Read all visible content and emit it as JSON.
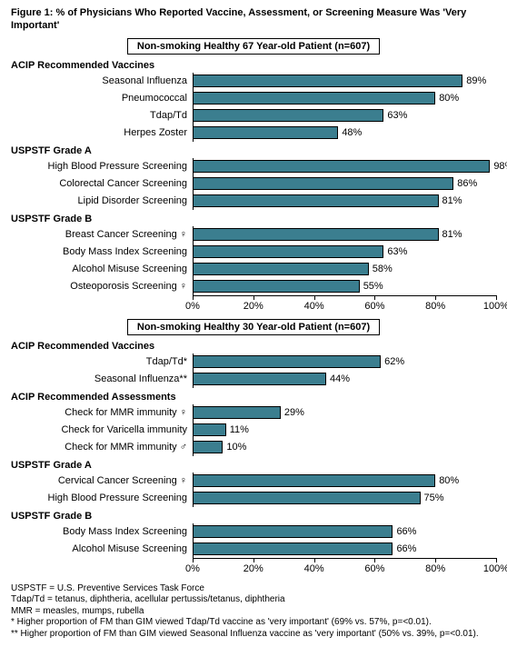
{
  "figure_title": "Figure 1: % of Physicians Who Reported Vaccine, Assessment, or Screening Measure Was 'Very Important'",
  "bar_color": "#3b7e8f",
  "bar_border": "#000000",
  "background_color": "#ffffff",
  "xlim": [
    0,
    100
  ],
  "xtick_step": 20,
  "xtick_labels": [
    "0%",
    "20%",
    "40%",
    "60%",
    "80%",
    "100%"
  ],
  "panels": [
    {
      "title": "Non-smoking Healthy 67 Year-old Patient (n=607)",
      "groups": [
        {
          "label": "ACIP Recommended Vaccines",
          "rows": [
            {
              "label": "Seasonal Influenza",
              "value": 89
            },
            {
              "label": "Pneumococcal",
              "value": 80
            },
            {
              "label": "Tdap/Td",
              "value": 63
            },
            {
              "label": "Herpes Zoster",
              "value": 48
            }
          ]
        },
        {
          "label": "USPSTF Grade A",
          "rows": [
            {
              "label": "High Blood Pressure Screening",
              "value": 98
            },
            {
              "label": "Colorectal Cancer Screening",
              "value": 86
            },
            {
              "label": "Lipid Disorder Screening",
              "value": 81
            }
          ]
        },
        {
          "label": "USPSTF Grade B",
          "rows": [
            {
              "label": "Breast Cancer Screening ♀",
              "value": 81
            },
            {
              "label": "Body Mass Index Screening",
              "value": 63
            },
            {
              "label": "Alcohol Misuse Screening",
              "value": 58
            },
            {
              "label": "Osteoporosis Screening ♀",
              "value": 55
            }
          ]
        }
      ]
    },
    {
      "title": "Non-smoking Healthy 30 Year-old Patient (n=607)",
      "groups": [
        {
          "label": "ACIP Recommended Vaccines",
          "rows": [
            {
              "label": "Tdap/Td*",
              "value": 62
            },
            {
              "label": "Seasonal Influenza**",
              "value": 44
            }
          ]
        },
        {
          "label": "ACIP Recommended Assessments",
          "rows": [
            {
              "label": "Check for MMR immunity ♀",
              "value": 29
            },
            {
              "label": "Check for Varicella immunity",
              "value": 11
            },
            {
              "label": "Check for MMR immunity ♂",
              "value": 10
            }
          ]
        },
        {
          "label": "USPSTF Grade A",
          "rows": [
            {
              "label": "Cervical Cancer Screening ♀",
              "value": 80
            },
            {
              "label": "High Blood Pressure Screening",
              "value": 75
            }
          ]
        },
        {
          "label": "USPSTF Grade B",
          "rows": [
            {
              "label": "Body Mass Index Screening",
              "value": 66
            },
            {
              "label": "Alcohol Misuse Screening",
              "value": 66
            }
          ]
        }
      ]
    }
  ],
  "footnotes": [
    "USPSTF = U.S. Preventive Services Task Force",
    "Tdap/Td = tetanus, diphtheria, acellular pertussis/tetanus, diphtheria",
    "MMR = measles, mumps, rubella",
    "* Higher proportion of FM than GIM viewed Tdap/Td vaccine as 'very important' (69% vs. 57%, p=<0.01).",
    "** Higher proportion of FM than GIM viewed Seasonal Influenza vaccine as 'very important' (50% vs. 39%, p=<0.01)."
  ]
}
